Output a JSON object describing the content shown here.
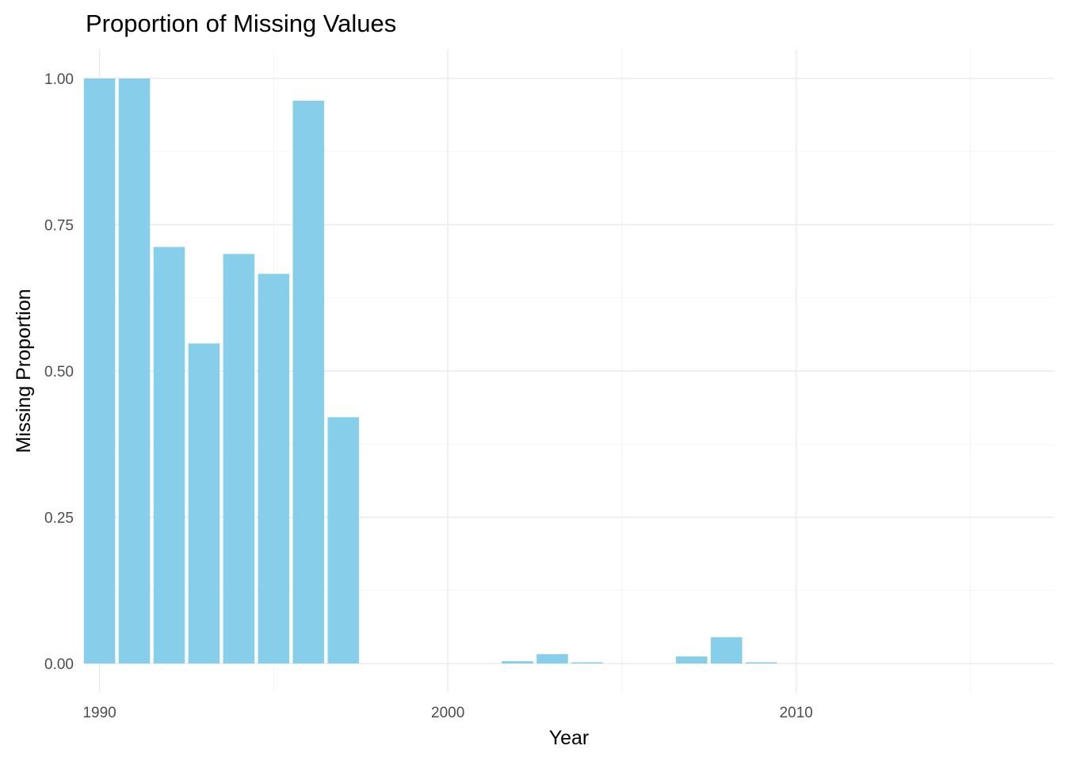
{
  "chart_data": {
    "type": "bar",
    "title": "Proportion of Missing Values",
    "xlabel": "Year",
    "ylabel": "Missing Proportion",
    "bar_color": "#87CEEB",
    "grid": true,
    "legend": "none",
    "xlim": [
      1989.6,
      2017.4
    ],
    "ylim": [
      -0.045,
      1.05
    ],
    "x_ticks": [
      1990,
      2000,
      2010
    ],
    "x_tick_labels": [
      "1990",
      "2000",
      "2010"
    ],
    "x_minor_ticks": [
      1995,
      2005,
      2015
    ],
    "y_ticks": [
      0,
      0.25,
      0.5,
      0.75,
      1.0
    ],
    "y_tick_labels": [
      "0.00",
      "0.25",
      "0.50",
      "0.75",
      "1.00"
    ],
    "y_minor_ticks": [
      0.125,
      0.375,
      0.625,
      0.875
    ],
    "bar_width": 0.9,
    "x": [
      1990,
      1991,
      1992,
      1993,
      1994,
      1995,
      1996,
      1997,
      1998,
      1999,
      2000,
      2001,
      2002,
      2003,
      2004,
      2005,
      2006,
      2007,
      2008,
      2009,
      2010,
      2011,
      2012,
      2013,
      2014,
      2015,
      2016
    ],
    "values": [
      1.0,
      1.0,
      0.712,
      0.547,
      0.7,
      0.666,
      0.962,
      0.421,
      0,
      0,
      0,
      0,
      0.004,
      0.016,
      0.002,
      0,
      0,
      0.012,
      0.045,
      0.002,
      0,
      0,
      0,
      0,
      0,
      0,
      0
    ]
  }
}
